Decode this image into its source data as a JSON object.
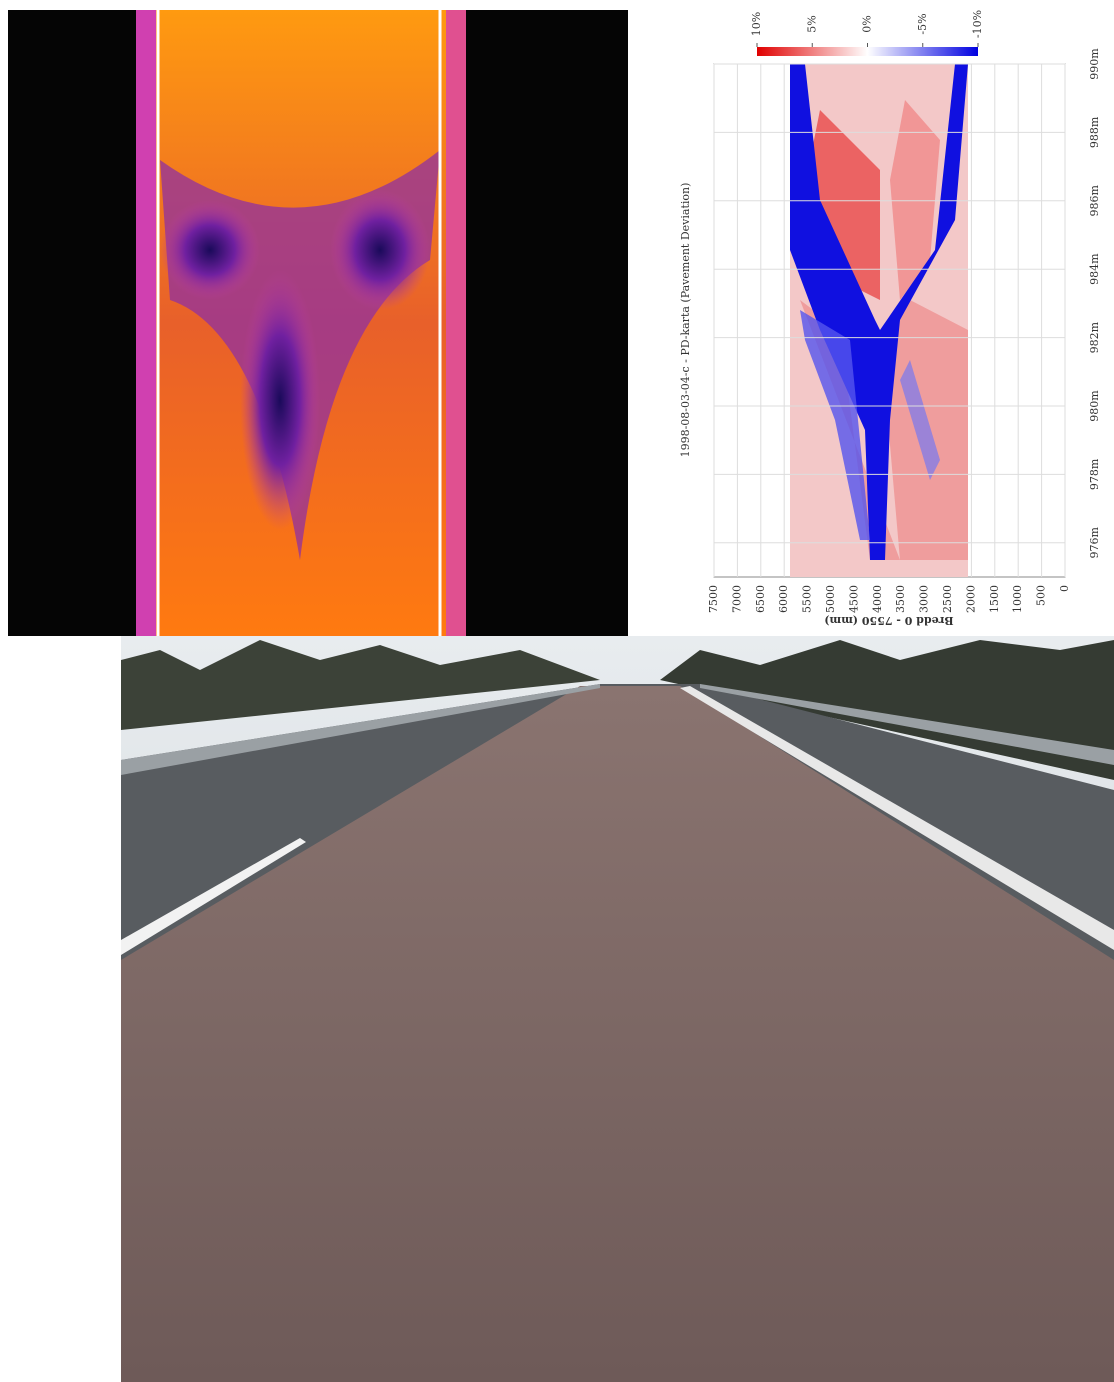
{
  "chart_data": {
    "type": "heatmap",
    "title": "1998-08-03-04-c - PD-karta (Pavement Deviation)",
    "xlabel": "Bredd 0 - 7550 (mm)",
    "xlim": [
      0,
      7500
    ],
    "xticks": [
      0,
      500,
      1000,
      1500,
      2000,
      2500,
      3000,
      3500,
      4000,
      4500,
      5000,
      5500,
      6000,
      6500,
      7000,
      7500
    ],
    "ylim": [
      975,
      990
    ],
    "yticks": [
      {
        "value": 976,
        "label": "976m"
      },
      {
        "value": 978,
        "label": "978m"
      },
      {
        "value": 980,
        "label": "980m"
      },
      {
        "value": 982,
        "label": "982m"
      },
      {
        "value": 984,
        "label": "984m"
      },
      {
        "value": 986,
        "label": "986m"
      },
      {
        "value": 988,
        "label": "988m"
      },
      {
        "value": 990,
        "label": "990m"
      }
    ],
    "grid": true,
    "clim": [
      -10,
      10
    ],
    "cticks": [
      {
        "value": 10,
        "label": "10%"
      },
      {
        "value": 5,
        "label": "5%"
      },
      {
        "value": 0,
        "label": "0%"
      },
      {
        "value": -5,
        "label": "-5%"
      },
      {
        "value": -10,
        "label": "-10%"
      }
    ]
  }
}
